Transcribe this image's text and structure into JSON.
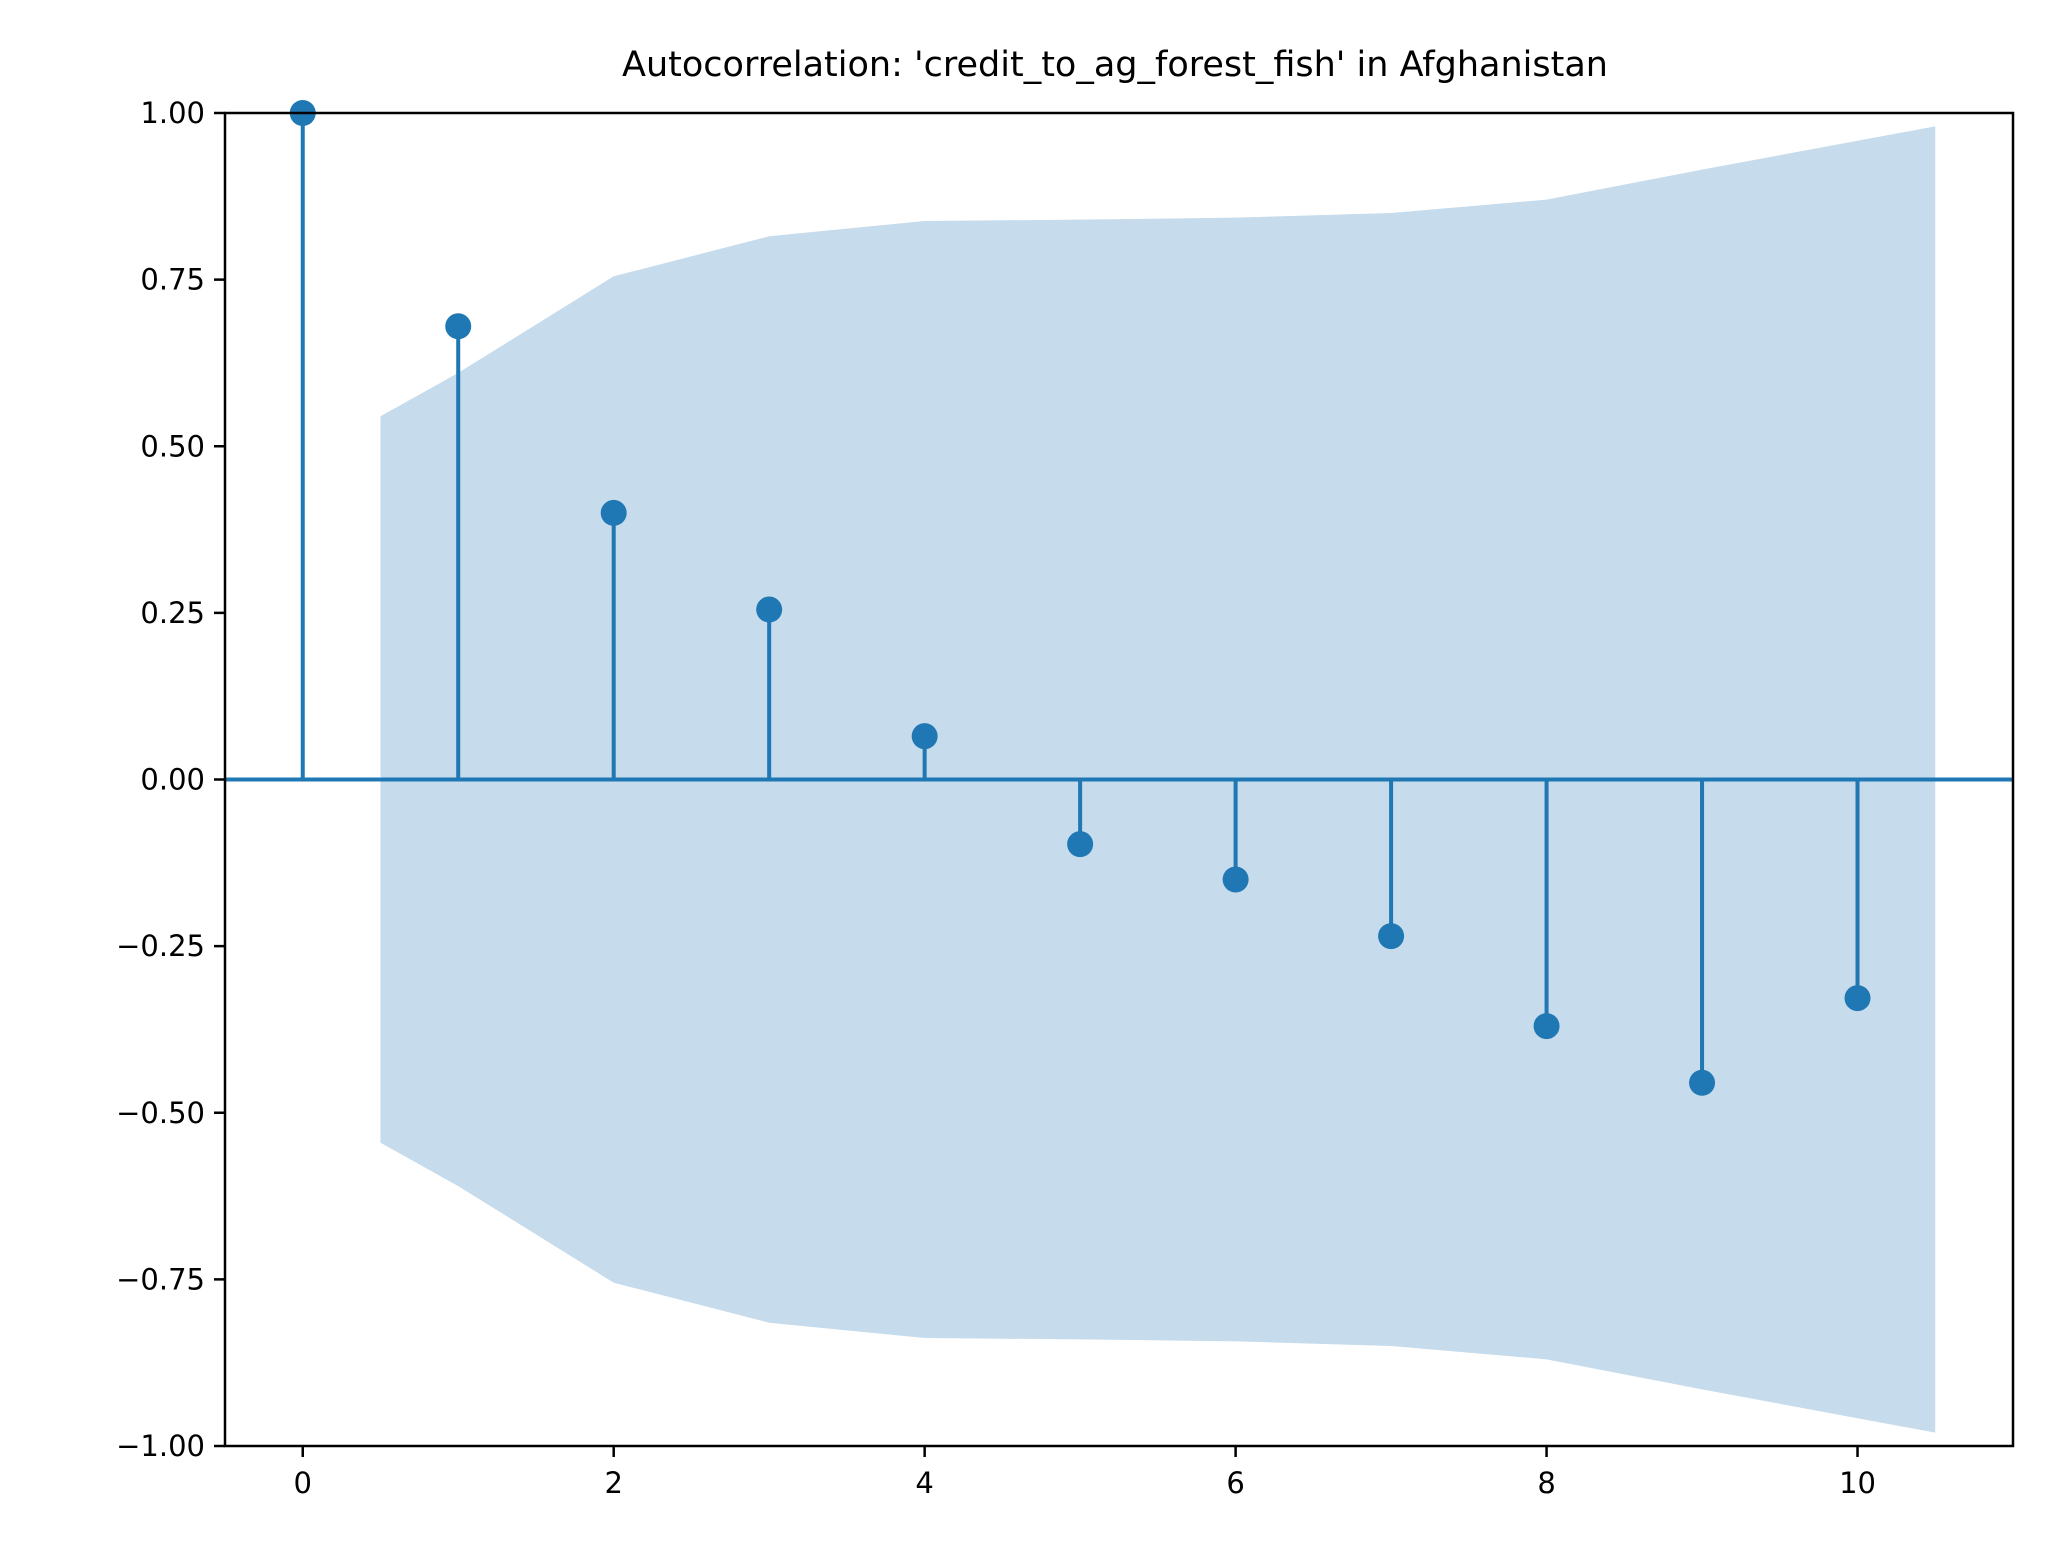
{
  "chart_data": {
    "type": "stem",
    "title": "Autocorrelation: 'credit_to_ag_forest_fish' in Afghanistan",
    "xlabel": "",
    "ylabel": "",
    "xlim": [
      -0.5,
      11
    ],
    "ylim": [
      -1.0,
      1.0
    ],
    "x_ticks": [
      0,
      2,
      4,
      6,
      8,
      10
    ],
    "x_tick_labels": [
      "0",
      "2",
      "4",
      "6",
      "8",
      "10"
    ],
    "y_ticks": [
      1.0,
      0.75,
      0.5,
      0.25,
      0.0,
      -0.25,
      -0.5,
      -0.75,
      -1.0
    ],
    "y_tick_labels": [
      "1.00",
      "0.75",
      "0.50",
      "0.25",
      "0.00",
      "−0.25",
      "−0.50",
      "−0.75",
      "−1.00"
    ],
    "lags": [
      0,
      1,
      2,
      3,
      4,
      5,
      6,
      7,
      8,
      9,
      10
    ],
    "values": [
      1.0,
      0.68,
      0.4,
      0.255,
      0.065,
      -0.097,
      -0.15,
      -0.235,
      -0.37,
      -0.455,
      -0.328
    ],
    "confidence_band": {
      "x": [
        0.5,
        1,
        2,
        3,
        4,
        5,
        6,
        7,
        8,
        9,
        10.5
      ],
      "upper": [
        0.545,
        0.61,
        0.755,
        0.815,
        0.838,
        0.84,
        0.843,
        0.85,
        0.87,
        0.915,
        0.98
      ],
      "lower": [
        -0.545,
        -0.61,
        -0.755,
        -0.815,
        -0.838,
        -0.84,
        -0.843,
        -0.85,
        -0.87,
        -0.915,
        -0.98
      ]
    },
    "grid": false,
    "colors": {
      "stem": "#1f77b4",
      "band": "#c6dbeb",
      "axis": "#000000"
    }
  }
}
